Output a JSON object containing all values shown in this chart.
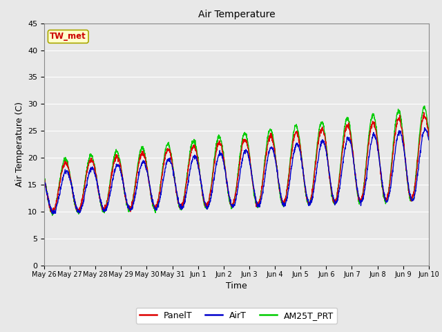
{
  "title": "Air Temperature",
  "xlabel": "Time",
  "ylabel": "Air Temperature (C)",
  "ylim": [
    0,
    45
  ],
  "yticks": [
    0,
    5,
    10,
    15,
    20,
    25,
    30,
    35,
    40,
    45
  ],
  "annotation_text": "TW_met",
  "annotation_color": "#cc0000",
  "annotation_bg": "#ffffcc",
  "annotation_border": "#aaa800",
  "plot_bg": "#e8e8e8",
  "fig_bg": "#e8e8e8",
  "line_colors": {
    "PanelT": "#dd0000",
    "AirT": "#0000cc",
    "AM25T_PRT": "#00cc00"
  },
  "legend_labels": [
    "PanelT",
    "AirT",
    "AM25T_PRT"
  ],
  "grid_color": "#ffffff",
  "x_tick_labels": [
    "May 26",
    "May 27",
    "May 28",
    "May 29",
    "May 30",
    "May 31",
    "Jun 1",
    "Jun 2",
    "Jun 3",
    "Jun 4",
    "Jun 5",
    "Jun 6",
    "Jun 7",
    "Jun 8",
    "Jun 9",
    "Jun 10"
  ],
  "num_points": 2000,
  "num_days": 15
}
